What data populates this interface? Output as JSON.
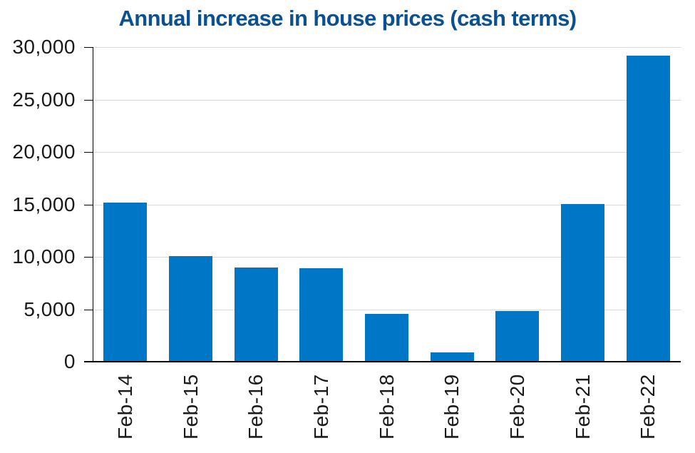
{
  "title": "Annual increase in house prices (cash terms)",
  "colors": {
    "bar": "#0077C6",
    "title": "#0B5191",
    "gridline": "#D9D9D9",
    "axis": "#000000",
    "tick_label": "#1A1A1A"
  },
  "chart_data": {
    "type": "bar",
    "title": "Annual increase in house prices (cash terms)",
    "categories": [
      "Feb-14",
      "Feb-15",
      "Feb-16",
      "Feb-17",
      "Feb-18",
      "Feb-19",
      "Feb-20",
      "Feb-21",
      "Feb-22"
    ],
    "values": [
      15200,
      10100,
      9000,
      8900,
      4550,
      900,
      4800,
      15000,
      29200
    ],
    "xlabel": "",
    "ylabel": "",
    "ylim": [
      0,
      30000
    ],
    "ytick_step": 5000,
    "ytick_labels": [
      "0",
      "5,000",
      "10,000",
      "15,000",
      "20,000",
      "25,000",
      "30,000"
    ],
    "grid": true,
    "legend": false,
    "bar_color": "#0077C6",
    "x_labels_rotation_deg": -90
  }
}
